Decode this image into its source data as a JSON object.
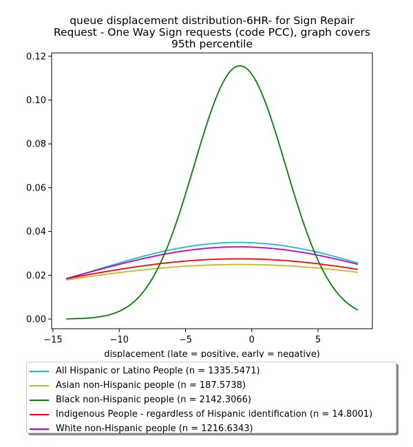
{
  "chart_data": {
    "type": "line",
    "title_lines": [
      "queue displacement distribution-6HR-  for Sign Repair",
      "Request - One Way Sign  requests (code PCC), graph covers",
      "95th percentile"
    ],
    "xlabel": "displacement (late = positive, early = negative)",
    "ylabel": "",
    "xlim": [
      -15.1,
      9.1
    ],
    "ylim": [
      -0.0044,
      0.1215
    ],
    "xticks": [
      -15,
      -10,
      -5,
      0,
      5
    ],
    "xtick_labels": [
      "−15",
      "−10",
      "−5",
      "0",
      "5"
    ],
    "yticks": [
      0.0,
      0.02,
      0.04,
      0.06,
      0.08,
      0.1,
      0.12
    ],
    "ytick_labels": [
      "0.00",
      "0.02",
      "0.04",
      "0.06",
      "0.08",
      "0.10",
      "0.12"
    ],
    "x_range": [
      -14,
      8
    ],
    "grid": false,
    "legend_position": "below",
    "series": [
      {
        "name": "All Hispanic or Latino People (n = 1335.5471)",
        "color": "#17becf",
        "dist": "normal",
        "mean": -1.0,
        "sd": 11.4
      },
      {
        "name": "Asian non-Hispanic people (n = 187.5738)",
        "color": "#bcbd22",
        "dist": "normal",
        "mean": -0.9,
        "sd": 16.0
      },
      {
        "name": "Black non-Hispanic people (n = 2142.3066)",
        "color": "#008000",
        "dist": "normal",
        "mean": -0.9,
        "sd": 3.45
      },
      {
        "name": "Indigenous People - regardless of Hispanic identification (n = 14.8001)",
        "color": "#ff0000",
        "dist": "normal",
        "mean": -1.0,
        "sd": 14.5
      },
      {
        "name": "White non-Hispanic people (n = 1216.6343)",
        "color": "#bf00bf",
        "dist": "normal",
        "mean": -1.0,
        "sd": 12.1
      }
    ]
  }
}
